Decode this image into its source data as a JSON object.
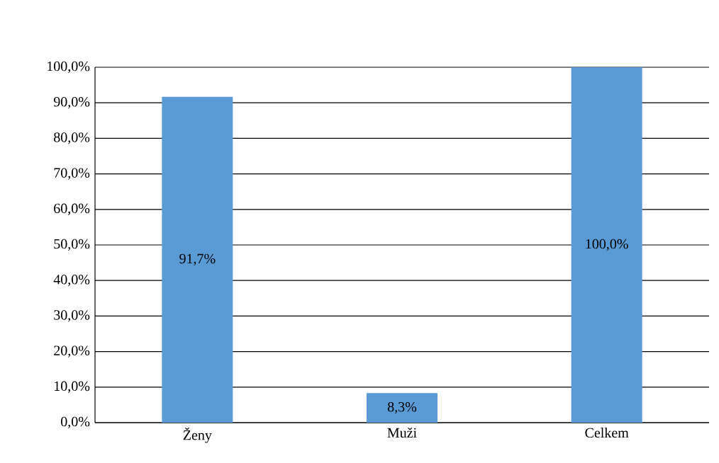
{
  "chart_data": {
    "type": "bar",
    "categories": [
      "Ženy",
      "Muži",
      "Celkem"
    ],
    "values": [
      91.7,
      8.3,
      100.0
    ],
    "value_labels": [
      "91,7%",
      "8,3%",
      "100,0%"
    ],
    "color": "#5b9bd5",
    "ylim": [
      0,
      100
    ],
    "yticks": [
      {
        "value": 0,
        "label": "0,0%"
      },
      {
        "value": 10,
        "label": "10,0%"
      },
      {
        "value": 20,
        "label": "20,0%"
      },
      {
        "value": 30,
        "label": "30,0%"
      },
      {
        "value": 40,
        "label": "40,0%"
      },
      {
        "value": 50,
        "label": "50,0%"
      },
      {
        "value": 60,
        "label": "60,0%"
      },
      {
        "value": 70,
        "label": "70,0%"
      },
      {
        "value": 80,
        "label": "80,0%"
      },
      {
        "value": 90,
        "label": "90,0%"
      },
      {
        "value": 100,
        "label": "100,0%"
      }
    ],
    "grid": "y"
  }
}
